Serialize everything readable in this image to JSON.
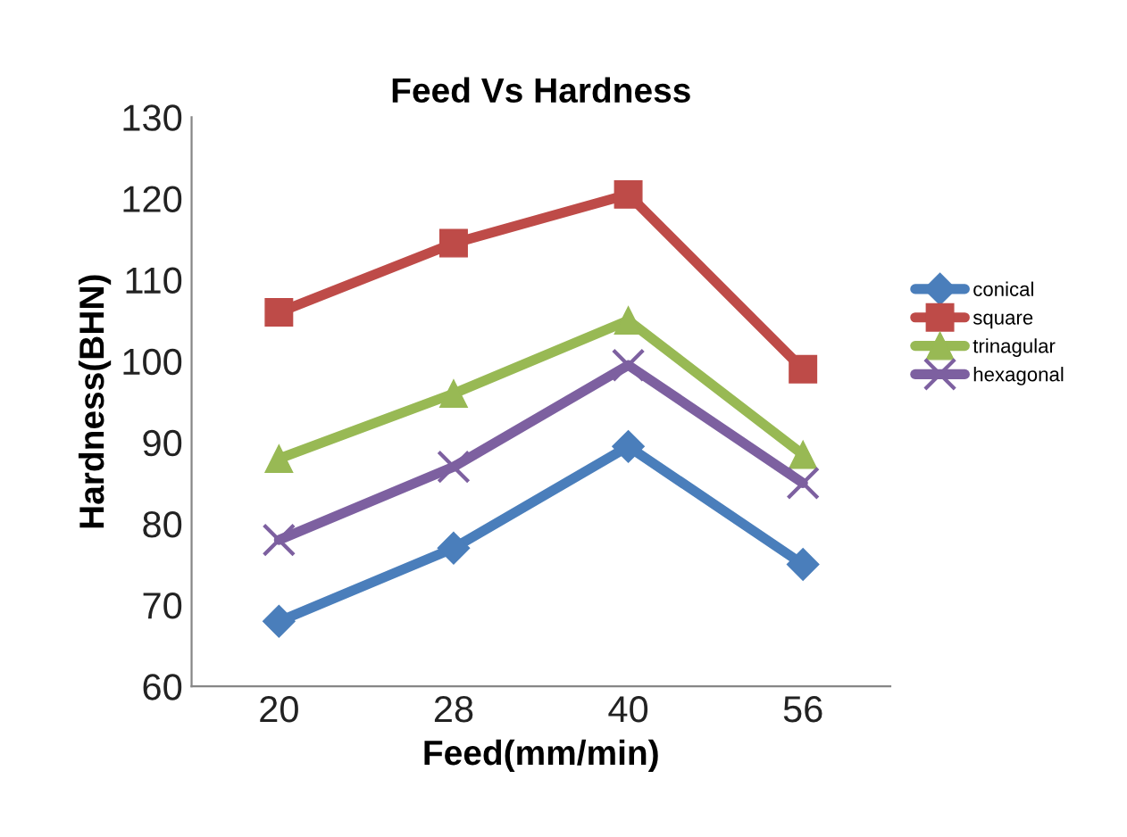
{
  "chart_data": {
    "type": "line",
    "title": "Feed Vs Hardness",
    "xlabel": "Feed(mm/min)",
    "ylabel": "Hardness(BHN)",
    "categories": [
      "20",
      "28",
      "40",
      "56"
    ],
    "series": [
      {
        "name": "conical",
        "color": "#4a7ebb",
        "marker": "diamond",
        "values": [
          68,
          77,
          89.5,
          75
        ]
      },
      {
        "name": "square",
        "color": "#be4b48",
        "marker": "square",
        "values": [
          106,
          114.5,
          120.5,
          99
        ]
      },
      {
        "name": "trinagular",
        "color": "#98b954",
        "marker": "triangle",
        "values": [
          88,
          96,
          105,
          88.5
        ]
      },
      {
        "name": "hexagonal",
        "color": "#7d60a0",
        "marker": "cross",
        "values": [
          78,
          87,
          99.5,
          85
        ]
      }
    ],
    "ylim": [
      60,
      130
    ],
    "yticks": [
      60,
      70,
      80,
      90,
      100,
      110,
      120,
      130
    ],
    "grid": false,
    "legend": "right",
    "line_style": "solid"
  }
}
